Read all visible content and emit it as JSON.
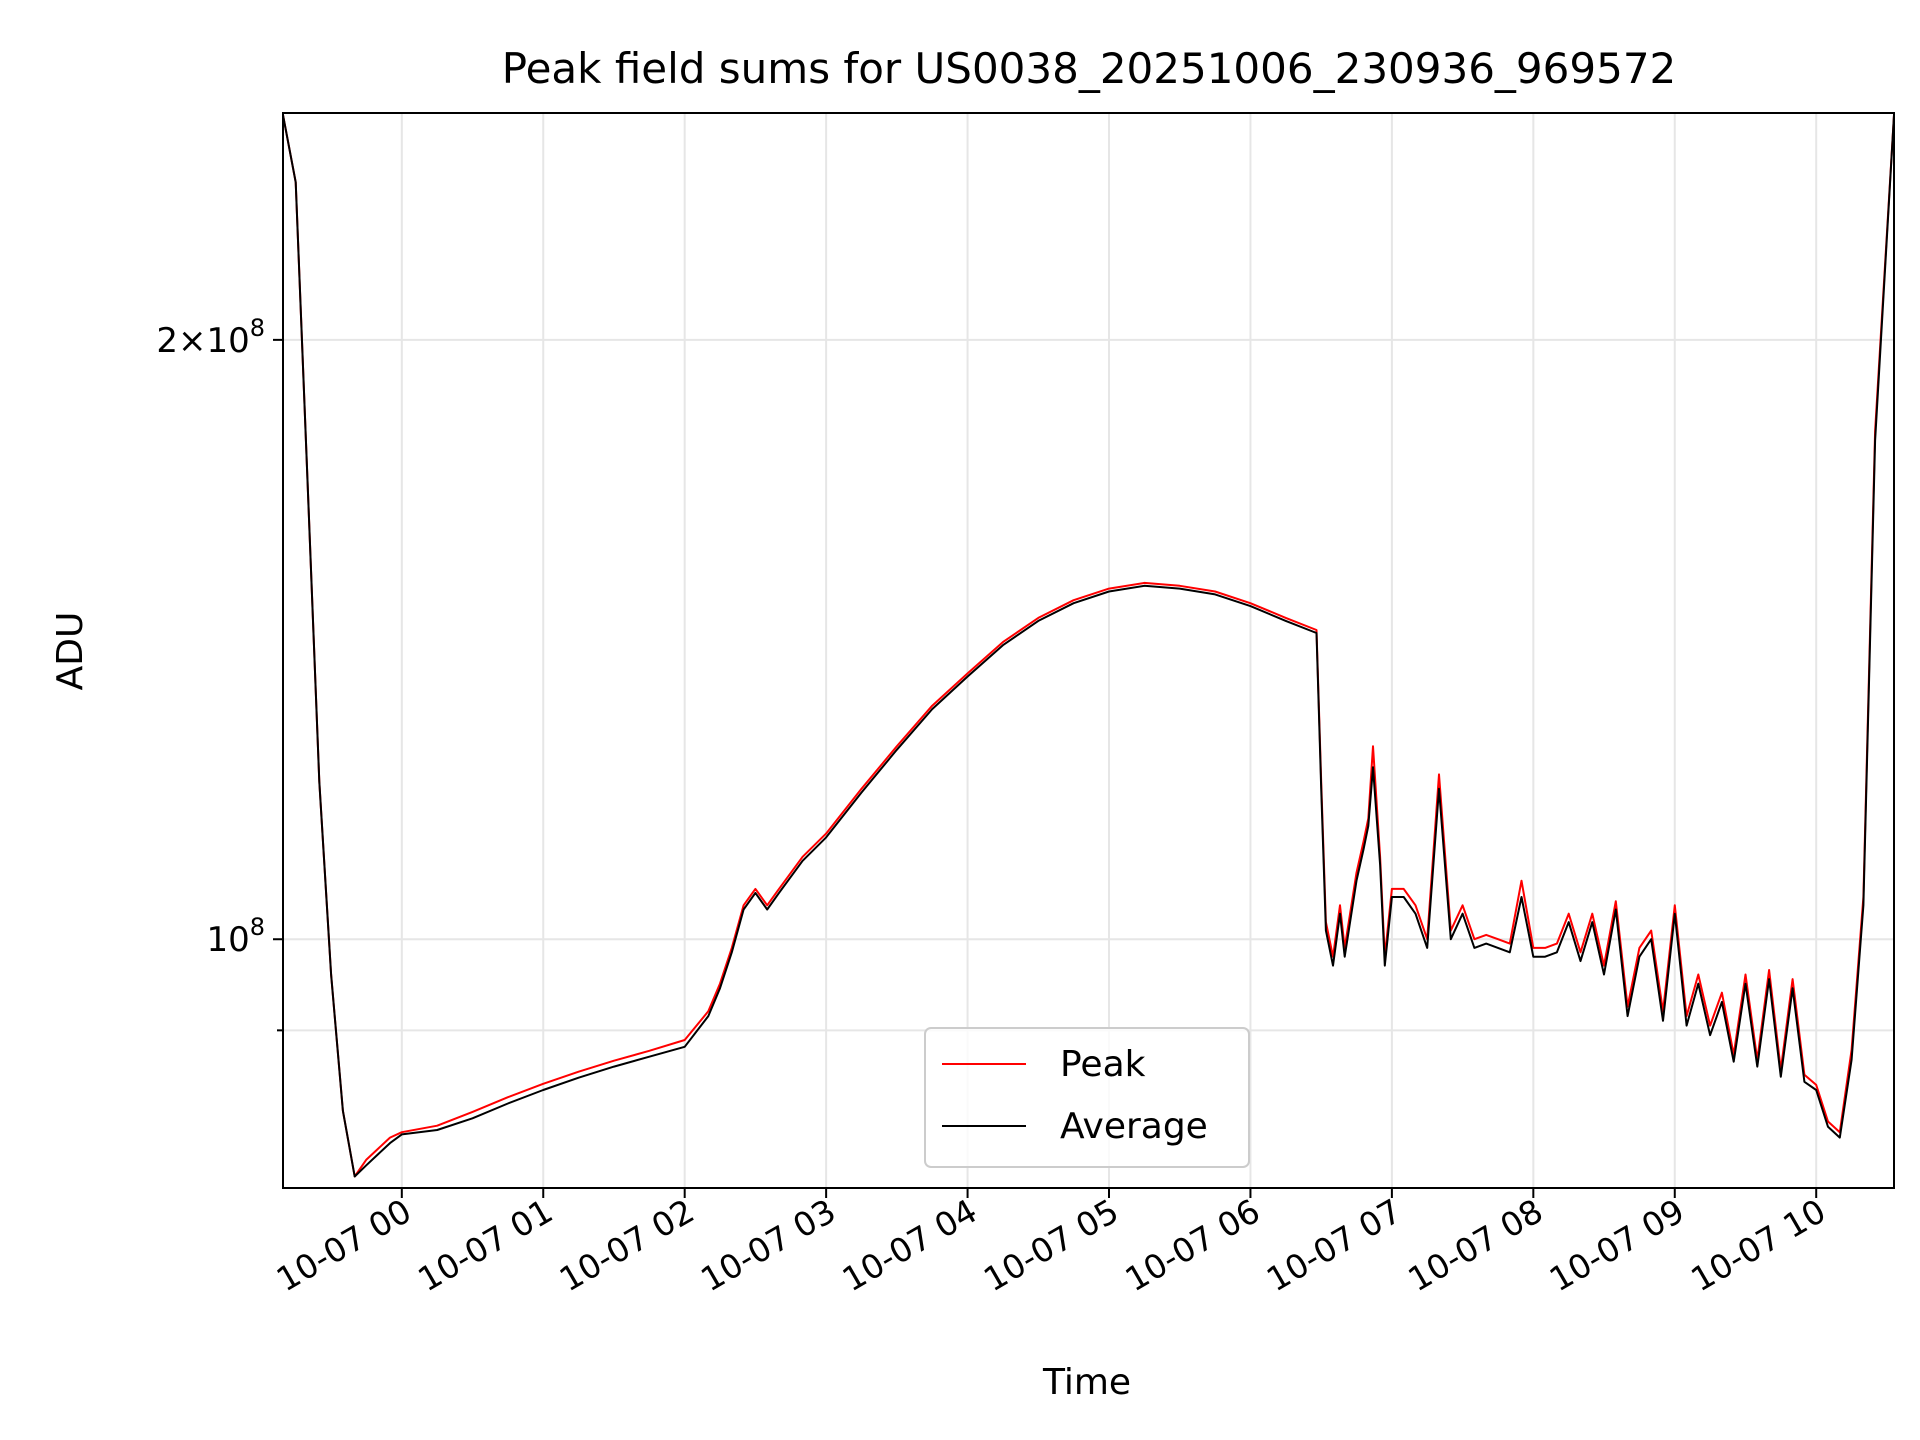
{
  "chart_data": {
    "type": "line",
    "title": "Peak field sums for US0038_20251006_230936_969572",
    "xlabel": "Time",
    "ylabel": "ADU",
    "yscale": "log",
    "ylim": [
      75000000,
      260000000
    ],
    "xlim": [
      "2025-10-06 23:09:36",
      "2025-10-07 10:33:00"
    ],
    "grid": true,
    "legend": {
      "placement": "lower-center"
    },
    "x_ticks": [
      {
        "x": "2025-10-07 00:00",
        "label": "10-07 00"
      },
      {
        "x": "2025-10-07 01:00",
        "label": "10-07 01"
      },
      {
        "x": "2025-10-07 02:00",
        "label": "10-07 02"
      },
      {
        "x": "2025-10-07 03:00",
        "label": "10-07 03"
      },
      {
        "x": "2025-10-07 04:00",
        "label": "10-07 04"
      },
      {
        "x": "2025-10-07 05:00",
        "label": "10-07 05"
      },
      {
        "x": "2025-10-07 06:00",
        "label": "10-07 06"
      },
      {
        "x": "2025-10-07 07:00",
        "label": "10-07 07"
      },
      {
        "x": "2025-10-07 08:00",
        "label": "10-07 08"
      },
      {
        "x": "2025-10-07 09:00",
        "label": "10-07 09"
      },
      {
        "x": "2025-10-07 10:00",
        "label": "10-07 10"
      }
    ],
    "y_ticks_major": [
      {
        "y": 100000000,
        "base": "10",
        "exp": "8",
        "mult": ""
      },
      {
        "y": 200000000,
        "base": "10",
        "exp": "8",
        "mult": "2×"
      }
    ],
    "y_ticks_minor": [
      90000000
    ],
    "series": [
      {
        "name": "Peak",
        "color": "#ff0000",
        "x": [
          "2025-10-06 23:09:36",
          "2025-10-06 23:15",
          "2025-10-06 23:20",
          "2025-10-06 23:25",
          "2025-10-06 23:30",
          "2025-10-06 23:35",
          "2025-10-06 23:40",
          "2025-10-06 23:45",
          "2025-10-06 23:50",
          "2025-10-06 23:55",
          "2025-10-07 00:00",
          "2025-10-07 00:15",
          "2025-10-07 00:30",
          "2025-10-07 00:45",
          "2025-10-07 01:00",
          "2025-10-07 01:15",
          "2025-10-07 01:30",
          "2025-10-07 01:45",
          "2025-10-07 02:00",
          "2025-10-07 02:10",
          "2025-10-07 02:15",
          "2025-10-07 02:20",
          "2025-10-07 02:25",
          "2025-10-07 02:30",
          "2025-10-07 02:35",
          "2025-10-07 02:40",
          "2025-10-07 02:50",
          "2025-10-07 03:00",
          "2025-10-07 03:15",
          "2025-10-07 03:30",
          "2025-10-07 03:45",
          "2025-10-07 04:00",
          "2025-10-07 04:15",
          "2025-10-07 04:30",
          "2025-10-07 04:45",
          "2025-10-07 05:00",
          "2025-10-07 05:15",
          "2025-10-07 05:30",
          "2025-10-07 05:45",
          "2025-10-07 06:00",
          "2025-10-07 06:15",
          "2025-10-07 06:28",
          "2025-10-07 06:30",
          "2025-10-07 06:32",
          "2025-10-07 06:35",
          "2025-10-07 06:38",
          "2025-10-07 06:40",
          "2025-10-07 06:45",
          "2025-10-07 06:48",
          "2025-10-07 06:50",
          "2025-10-07 06:52",
          "2025-10-07 06:55",
          "2025-10-07 06:57",
          "2025-10-07 07:00",
          "2025-10-07 07:05",
          "2025-10-07 07:10",
          "2025-10-07 07:15",
          "2025-10-07 07:20",
          "2025-10-07 07:25",
          "2025-10-07 07:30",
          "2025-10-07 07:35",
          "2025-10-07 07:40",
          "2025-10-07 07:45",
          "2025-10-07 07:50",
          "2025-10-07 07:55",
          "2025-10-07 08:00",
          "2025-10-07 08:05",
          "2025-10-07 08:10",
          "2025-10-07 08:15",
          "2025-10-07 08:20",
          "2025-10-07 08:25",
          "2025-10-07 08:30",
          "2025-10-07 08:35",
          "2025-10-07 08:40",
          "2025-10-07 08:45",
          "2025-10-07 08:50",
          "2025-10-07 08:55",
          "2025-10-07 09:00",
          "2025-10-07 09:05",
          "2025-10-07 09:10",
          "2025-10-07 09:15",
          "2025-10-07 09:20",
          "2025-10-07 09:25",
          "2025-10-07 09:30",
          "2025-10-07 09:35",
          "2025-10-07 09:40",
          "2025-10-07 09:45",
          "2025-10-07 09:50",
          "2025-10-07 09:55",
          "2025-10-07 10:00",
          "2025-10-07 10:05",
          "2025-10-07 10:10",
          "2025-10-07 10:15",
          "2025-10-07 10:20",
          "2025-10-07 10:25",
          "2025-10-07 10:33"
        ],
        "values": [
          260000000,
          240000000,
          170000000,
          120000000,
          96000000,
          82000000,
          76000000,
          77500000,
          78500000,
          79500000,
          80000000,
          80600000,
          81900000,
          83300000,
          84600000,
          85800000,
          86900000,
          87900000,
          89000000,
          92000000,
          95000000,
          99000000,
          104000000,
          106000000,
          104000000,
          106000000,
          110000000,
          113000000,
          119000000,
          125000000,
          131000000,
          136000000,
          141000000,
          145000000,
          148000000,
          150000000,
          151000000,
          150500000,
          149500000,
          147500000,
          145000000,
          143000000,
          120000000,
          102000000,
          98000000,
          104000000,
          99000000,
          108000000,
          112000000,
          115000000,
          125000000,
          110000000,
          98000000,
          106000000,
          106000000,
          104000000,
          100000000,
          121000000,
          101000000,
          104000000,
          100000000,
          100500000,
          100000000,
          99500000,
          107000000,
          99000000,
          99000000,
          99500000,
          103000000,
          98500000,
          103000000,
          97000000,
          104500000,
          92500000,
          99000000,
          101000000,
          92000000,
          104000000,
          91500000,
          96000000,
          90500000,
          94000000,
          87500000,
          96000000,
          87000000,
          96500000,
          86000000,
          95500000,
          85500000,
          84500000,
          81000000,
          80000000,
          88000000,
          105000000,
          180000000,
          260000000
        ]
      },
      {
        "name": "Average",
        "color": "#000000",
        "x": [
          "2025-10-06 23:09:36",
          "2025-10-06 23:15",
          "2025-10-06 23:20",
          "2025-10-06 23:25",
          "2025-10-06 23:30",
          "2025-10-06 23:35",
          "2025-10-06 23:40",
          "2025-10-06 23:45",
          "2025-10-06 23:50",
          "2025-10-06 23:55",
          "2025-10-07 00:00",
          "2025-10-07 00:15",
          "2025-10-07 00:30",
          "2025-10-07 00:45",
          "2025-10-07 01:00",
          "2025-10-07 01:15",
          "2025-10-07 01:30",
          "2025-10-07 01:45",
          "2025-10-07 02:00",
          "2025-10-07 02:10",
          "2025-10-07 02:15",
          "2025-10-07 02:20",
          "2025-10-07 02:25",
          "2025-10-07 02:30",
          "2025-10-07 02:35",
          "2025-10-07 02:40",
          "2025-10-07 02:50",
          "2025-10-07 03:00",
          "2025-10-07 03:15",
          "2025-10-07 03:30",
          "2025-10-07 03:45",
          "2025-10-07 04:00",
          "2025-10-07 04:15",
          "2025-10-07 04:30",
          "2025-10-07 04:45",
          "2025-10-07 05:00",
          "2025-10-07 05:15",
          "2025-10-07 05:30",
          "2025-10-07 05:45",
          "2025-10-07 06:00",
          "2025-10-07 06:15",
          "2025-10-07 06:28",
          "2025-10-07 06:30",
          "2025-10-07 06:32",
          "2025-10-07 06:35",
          "2025-10-07 06:38",
          "2025-10-07 06:40",
          "2025-10-07 06:45",
          "2025-10-07 06:48",
          "2025-10-07 06:50",
          "2025-10-07 06:52",
          "2025-10-07 06:55",
          "2025-10-07 06:57",
          "2025-10-07 07:00",
          "2025-10-07 07:05",
          "2025-10-07 07:10",
          "2025-10-07 07:15",
          "2025-10-07 07:20",
          "2025-10-07 07:25",
          "2025-10-07 07:30",
          "2025-10-07 07:35",
          "2025-10-07 07:40",
          "2025-10-07 07:45",
          "2025-10-07 07:50",
          "2025-10-07 07:55",
          "2025-10-07 08:00",
          "2025-10-07 08:05",
          "2025-10-07 08:10",
          "2025-10-07 08:15",
          "2025-10-07 08:20",
          "2025-10-07 08:25",
          "2025-10-07 08:30",
          "2025-10-07 08:35",
          "2025-10-07 08:40",
          "2025-10-07 08:45",
          "2025-10-07 08:50",
          "2025-10-07 08:55",
          "2025-10-07 09:00",
          "2025-10-07 09:05",
          "2025-10-07 09:10",
          "2025-10-07 09:15",
          "2025-10-07 09:20",
          "2025-10-07 09:25",
          "2025-10-07 09:30",
          "2025-10-07 09:35",
          "2025-10-07 09:40",
          "2025-10-07 09:45",
          "2025-10-07 09:50",
          "2025-10-07 09:55",
          "2025-10-07 10:00",
          "2025-10-07 10:05",
          "2025-10-07 10:10",
          "2025-10-07 10:15",
          "2025-10-07 10:20",
          "2025-10-07 10:25",
          "2025-10-07 10:33"
        ],
        "values": [
          260000000,
          240000000,
          170000000,
          120000000,
          96000000,
          82000000,
          76000000,
          77000000,
          78000000,
          79000000,
          79800000,
          80200000,
          81300000,
          82700000,
          84000000,
          85200000,
          86300000,
          87300000,
          88300000,
          91500000,
          94500000,
          98500000,
          103500000,
          105500000,
          103500000,
          105500000,
          109500000,
          112500000,
          118500000,
          124500000,
          130500000,
          135500000,
          140500000,
          144500000,
          147500000,
          149500000,
          150500000,
          150000000,
          149000000,
          147000000,
          144500000,
          142500000,
          119000000,
          101000000,
          97000000,
          103000000,
          98000000,
          107000000,
          111000000,
          114000000,
          122000000,
          109000000,
          97000000,
          105000000,
          105000000,
          103000000,
          99000000,
          119000000,
          100000000,
          103000000,
          99000000,
          99500000,
          99000000,
          98500000,
          105000000,
          98000000,
          98000000,
          98500000,
          102000000,
          97500000,
          102000000,
          96000000,
          103500000,
          91500000,
          98000000,
          100000000,
          91000000,
          103000000,
          90500000,
          95000000,
          89500000,
          93000000,
          86800000,
          95000000,
          86300000,
          95500000,
          85300000,
          94500000,
          84800000,
          84000000,
          80500000,
          79500000,
          87000000,
          104000000,
          178000000,
          260000000
        ]
      }
    ]
  }
}
